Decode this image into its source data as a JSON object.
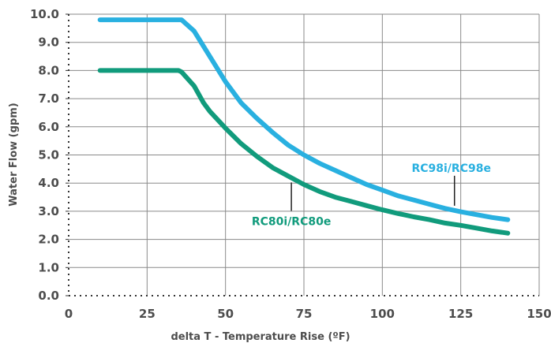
{
  "chart_data": {
    "type": "line",
    "title": "",
    "xlabel": "delta T - Temperature Rise (ºF)",
    "ylabel": "Water Flow (gpm)",
    "xlim": [
      0,
      150
    ],
    "ylim": [
      0,
      10
    ],
    "x_ticks": [
      "0",
      "25",
      "50",
      "75",
      "100",
      "125",
      "150"
    ],
    "y_ticks": [
      "0.0",
      "1.0",
      "2.0",
      "3.0",
      "4.0",
      "5.0",
      "6.0",
      "7.0",
      "8.0",
      "9.0",
      "10.0"
    ],
    "grid": true,
    "legend": "inline labels",
    "series": [
      {
        "name": "RC98i/RC98e",
        "color": "#29b0e0",
        "points": [
          [
            10,
            9.8
          ],
          [
            15,
            9.8
          ],
          [
            20,
            9.8
          ],
          [
            25,
            9.8
          ],
          [
            30,
            9.8
          ],
          [
            35,
            9.8
          ],
          [
            36,
            9.8
          ],
          [
            40,
            9.4
          ],
          [
            45,
            8.5
          ],
          [
            50,
            7.6
          ],
          [
            55,
            6.85
          ],
          [
            60,
            6.3
          ],
          [
            65,
            5.8
          ],
          [
            70,
            5.35
          ],
          [
            75,
            5.0
          ],
          [
            80,
            4.7
          ],
          [
            85,
            4.45
          ],
          [
            90,
            4.2
          ],
          [
            95,
            3.95
          ],
          [
            100,
            3.75
          ],
          [
            105,
            3.55
          ],
          [
            110,
            3.4
          ],
          [
            115,
            3.25
          ],
          [
            120,
            3.1
          ],
          [
            125,
            2.98
          ],
          [
            130,
            2.88
          ],
          [
            135,
            2.78
          ],
          [
            140,
            2.7
          ]
        ]
      },
      {
        "name": "RC80i/RC80e",
        "color": "#119b7c",
        "points": [
          [
            10,
            8.0
          ],
          [
            15,
            8.0
          ],
          [
            20,
            8.0
          ],
          [
            25,
            8.0
          ],
          [
            30,
            8.0
          ],
          [
            35,
            8.0
          ],
          [
            36,
            7.95
          ],
          [
            40,
            7.45
          ],
          [
            43,
            6.85
          ],
          [
            45,
            6.55
          ],
          [
            50,
            5.95
          ],
          [
            55,
            5.4
          ],
          [
            60,
            4.95
          ],
          [
            65,
            4.55
          ],
          [
            70,
            4.25
          ],
          [
            75,
            3.95
          ],
          [
            80,
            3.7
          ],
          [
            85,
            3.5
          ],
          [
            90,
            3.35
          ],
          [
            95,
            3.2
          ],
          [
            100,
            3.05
          ],
          [
            105,
            2.92
          ],
          [
            110,
            2.8
          ],
          [
            115,
            2.7
          ],
          [
            120,
            2.58
          ],
          [
            125,
            2.5
          ],
          [
            130,
            2.4
          ],
          [
            135,
            2.3
          ],
          [
            140,
            2.22
          ]
        ]
      }
    ],
    "annotations": [
      {
        "text": "RC98i/RC98e",
        "series": 0,
        "leader_x": 123
      },
      {
        "text": "RC80i/RC80e",
        "series": 1,
        "leader_x": 71
      }
    ]
  }
}
